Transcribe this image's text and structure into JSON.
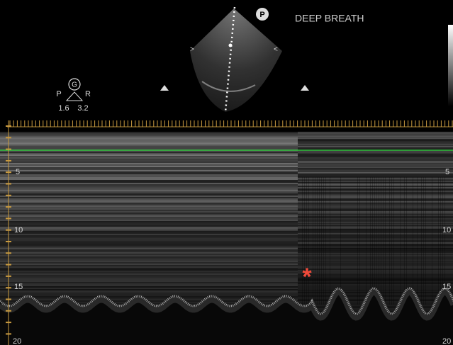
{
  "header": {
    "mode_label": "DEEP BREATH",
    "probe_marker": "P"
  },
  "orientation": {
    "gain_icon": "G",
    "left": "P",
    "right": "R",
    "values": [
      "1.6",
      "3.2"
    ]
  },
  "depth_scale": {
    "labels": [
      "5",
      "10",
      "15",
      "20"
    ]
  },
  "annotation": "*"
}
